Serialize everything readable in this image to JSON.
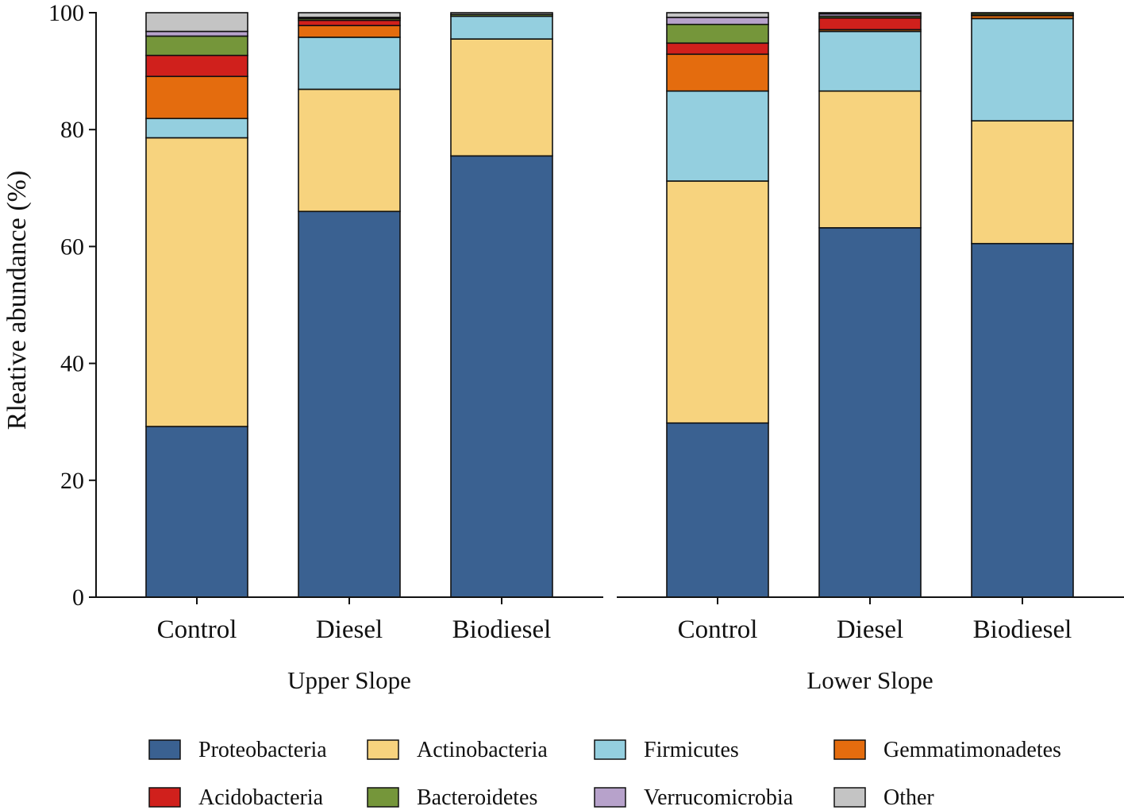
{
  "chart_data": {
    "type": "bar",
    "stacked": true,
    "title": "",
    "xlabel": "",
    "ylabel": "Rleative abundance (%)",
    "ylim": [
      0,
      100
    ],
    "yticks": [
      0,
      20,
      40,
      60,
      80,
      100
    ],
    "groups": [
      {
        "name": "Upper Slope",
        "categories": [
          "Control",
          "Diesel",
          "Biodiesel"
        ]
      },
      {
        "name": "Lower Slope",
        "categories": [
          "Control",
          "Diesel",
          "Biodiesel"
        ]
      }
    ],
    "series": [
      {
        "name": "Proteobacteria",
        "color": "#3a6191",
        "values": [
          29.2,
          66.0,
          75.5,
          29.8,
          63.2,
          60.5
        ]
      },
      {
        "name": "Actinobacteria",
        "color": "#f7d37e",
        "values": [
          49.4,
          20.9,
          20.0,
          41.4,
          23.4,
          21.0
        ]
      },
      {
        "name": "Firmicutes",
        "color": "#94cfdf",
        "values": [
          3.3,
          8.9,
          3.9,
          15.4,
          10.2,
          17.5
        ]
      },
      {
        "name": "Gemmatimonadetes",
        "color": "#e46c0e",
        "values": [
          7.2,
          2.0,
          0.0,
          6.3,
          0.3,
          0.5
        ]
      },
      {
        "name": "Acidobacteria",
        "color": "#d0201c",
        "values": [
          3.6,
          0.9,
          0.0,
          1.9,
          2.0,
          0.1
        ]
      },
      {
        "name": "Bacteroidetes",
        "color": "#75963a",
        "values": [
          3.3,
          0.3,
          0.3,
          3.2,
          0.3,
          0.3
        ]
      },
      {
        "name": "Verrucomicrobia",
        "color": "#b7a2cb",
        "values": [
          0.8,
          0.2,
          0.0,
          1.2,
          0.4,
          0.0
        ]
      },
      {
        "name": "Other",
        "color": "#c4c4c4",
        "values": [
          3.2,
          0.8,
          0.3,
          0.8,
          0.2,
          0.1
        ]
      }
    ],
    "legend_position": "bottom"
  }
}
